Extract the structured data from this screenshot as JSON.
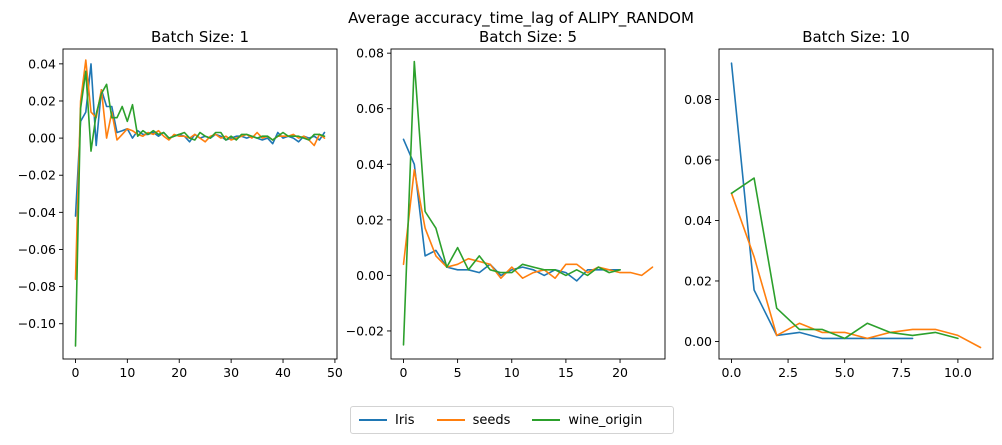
{
  "figure_title": "Average accuracy_time_lag of ALIPY_RANDOM",
  "legend": {
    "placement": "bottom-center",
    "entries": [
      {
        "name": "Iris",
        "color": "#1f77b4"
      },
      {
        "name": "seeds",
        "color": "#ff7f0e"
      },
      {
        "name": "wine_origin",
        "color": "#2ca02c"
      }
    ]
  },
  "chart_data": [
    {
      "type": "line",
      "title": "Batch Size: 1",
      "xlim": [
        -2.4,
        50.4
      ],
      "ylim": [
        -0.119,
        0.048
      ],
      "xticks": [
        0,
        10,
        20,
        30,
        40,
        50
      ],
      "xtick_labels": [
        "0",
        "10",
        "20",
        "30",
        "40",
        "50"
      ],
      "yticks": [
        -0.1,
        -0.08,
        -0.06,
        -0.04,
        -0.02,
        0.0,
        0.02,
        0.04
      ],
      "ytick_labels": [
        "−0.10",
        "−0.08",
        "−0.06",
        "−0.04",
        "−0.02",
        "0.00",
        "0.02",
        "0.04"
      ],
      "series": [
        {
          "name": "Iris",
          "x_start": 0,
          "values": [
            -0.042,
            0.009,
            0.014,
            0.04,
            -0.004,
            0.026,
            0.017,
            0.017,
            0.003,
            0.004,
            0.005,
            0.0,
            0.004,
            0.002,
            0.002,
            0.003,
            0.001,
            0.003,
            0.0,
            0.001,
            0.002,
            0.001,
            -0.002,
            0.002,
            0.0,
            0.001,
            0.0,
            0.002,
            0.001,
            -0.001,
            0.0,
            0.001,
            0.001,
            0.0,
            0.001,
            0.0,
            -0.001,
            0.0,
            -0.003,
            0.003,
            0.0,
            0.001,
            0.0,
            -0.002,
            0.001,
            0.0,
            0.001,
            -0.001,
            0.003
          ]
        },
        {
          "name": "seeds",
          "x_start": 0,
          "values": [
            -0.076,
            0.02,
            0.042,
            0.014,
            0.011,
            0.026,
            0.0,
            0.014,
            -0.001,
            0.002,
            0.005,
            0.004,
            0.002,
            0.001,
            0.003,
            0.002,
            0.004,
            0.001,
            -0.001,
            0.002,
            0.001,
            0.001,
            0.0,
            0.002,
            0.0,
            -0.002,
            0.001,
            0.002,
            0.0,
            0.001,
            -0.001,
            0.0,
            0.001,
            0.002,
            0.0,
            0.003,
            0.0,
            0.001,
            -0.001,
            0.001,
            0.001,
            0.001,
            0.002,
            0.0,
            0.001,
            -0.001,
            -0.004,
            0.002,
            0.0
          ]
        },
        {
          "name": "wine_origin",
          "x_start": 0,
          "values": [
            -0.112,
            0.016,
            0.036,
            -0.007,
            0.013,
            0.024,
            0.029,
            0.011,
            0.011,
            0.017,
            0.009,
            0.018,
            0.001,
            0.004,
            0.002,
            0.004,
            0.002,
            0.003,
            0.0,
            0.001,
            0.002,
            0.003,
            0.0,
            -0.001,
            0.003,
            0.001,
            0.0,
            0.003,
            0.003,
            -0.001,
            0.001,
            -0.001,
            0.002,
            0.002,
            0.001,
            0.0,
            0.001,
            0.001,
            -0.001,
            0.001,
            0.003,
            0.001,
            0.001,
            0.001,
            0.0,
            -0.001,
            0.002,
            0.002,
            0.001
          ]
        }
      ]
    },
    {
      "type": "line",
      "title": "Batch Size: 5",
      "xlim": [
        -1.15,
        24.15
      ],
      "ylim": [
        -0.0301,
        0.0815
      ],
      "xticks": [
        0,
        5,
        10,
        15,
        20
      ],
      "xtick_labels": [
        "0",
        "5",
        "10",
        "15",
        "20"
      ],
      "yticks": [
        -0.02,
        0.0,
        0.02,
        0.04,
        0.06,
        0.08
      ],
      "ytick_labels": [
        "−0.02",
        "0.00",
        "0.02",
        "0.04",
        "0.06",
        "0.08"
      ],
      "series": [
        {
          "name": "Iris",
          "x_start": 0,
          "values": [
            0.049,
            0.04,
            0.007,
            0.009,
            0.003,
            0.002,
            0.002,
            0.001,
            0.004,
            0.0,
            0.002,
            0.003,
            0.002,
            0.0,
            0.002,
            0.001,
            -0.002,
            0.002,
            0.002,
            0.002,
            0.002
          ]
        },
        {
          "name": "seeds",
          "x_start": 0,
          "values": [
            0.004,
            0.038,
            0.017,
            0.007,
            0.003,
            0.004,
            0.006,
            0.005,
            0.004,
            -0.001,
            0.003,
            -0.001,
            0.001,
            0.002,
            -0.001,
            0.004,
            0.004,
            0.001,
            0.003,
            0.002,
            0.001,
            0.001,
            0.0,
            0.003
          ]
        },
        {
          "name": "wine_origin",
          "x_start": 0,
          "values": [
            -0.025,
            0.077,
            0.023,
            0.017,
            0.003,
            0.01,
            0.002,
            0.007,
            0.002,
            0.001,
            0.001,
            0.004,
            0.003,
            0.002,
            0.002,
            0.0,
            0.002,
            0.0,
            0.003,
            0.001,
            0.002
          ]
        }
      ]
    },
    {
      "type": "line",
      "title": "Batch Size: 10",
      "xlim": [
        -0.55,
        11.55
      ],
      "ylim": [
        -0.0058,
        0.0967
      ],
      "xticks": [
        0,
        2.5,
        5,
        7.5,
        10
      ],
      "xtick_labels": [
        "0.0",
        "2.5",
        "5.0",
        "7.5",
        "10.0"
      ],
      "yticks": [
        0.0,
        0.02,
        0.04,
        0.06,
        0.08
      ],
      "ytick_labels": [
        "0.00",
        "0.02",
        "0.04",
        "0.06",
        "0.08"
      ],
      "series": [
        {
          "name": "Iris",
          "x_start": 0,
          "values": [
            0.092,
            0.017,
            0.002,
            0.003,
            0.001,
            0.001,
            0.001,
            0.001,
            0.001
          ]
        },
        {
          "name": "seeds",
          "x_start": 0,
          "values": [
            0.049,
            0.028,
            0.002,
            0.006,
            0.003,
            0.003,
            0.001,
            0.003,
            0.004,
            0.004,
            0.002,
            -0.002
          ]
        },
        {
          "name": "wine_origin",
          "x_start": 0,
          "values": [
            0.049,
            0.054,
            0.011,
            0.004,
            0.004,
            0.001,
            0.006,
            0.003,
            0.002,
            0.003,
            0.001
          ]
        }
      ]
    }
  ]
}
